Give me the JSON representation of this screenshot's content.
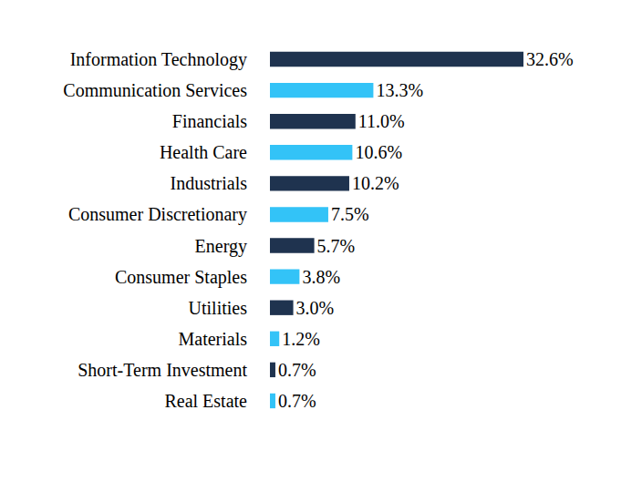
{
  "chart_data": {
    "type": "bar",
    "orientation": "horizontal",
    "categories": [
      "Information Technology",
      "Communication Services",
      "Financials",
      "Health Care",
      "Industrials",
      "Consumer Discretionary",
      "Energy",
      "Consumer Staples",
      "Utilities",
      "Materials",
      "Short-Term Investment",
      "Real Estate"
    ],
    "values": [
      32.6,
      13.3,
      11.0,
      10.6,
      10.2,
      7.5,
      5.7,
      3.8,
      3.0,
      1.2,
      0.7,
      0.7
    ],
    "value_labels": [
      "32.6%",
      "13.3%",
      "11.0%",
      "10.6%",
      "10.2%",
      "7.5%",
      "5.7%",
      "3.8%",
      "3.0%",
      "1.2%",
      "0.7%",
      "0.7%"
    ],
    "colors": [
      "#1f334f",
      "#33c3f7",
      "#1f334f",
      "#33c3f7",
      "#1f334f",
      "#33c3f7",
      "#1f334f",
      "#33c3f7",
      "#1f334f",
      "#33c3f7",
      "#1f334f",
      "#33c3f7"
    ],
    "xlim": [
      0,
      32.6
    ],
    "data_labels": true,
    "tick_labels": "y",
    "grid": false
  }
}
